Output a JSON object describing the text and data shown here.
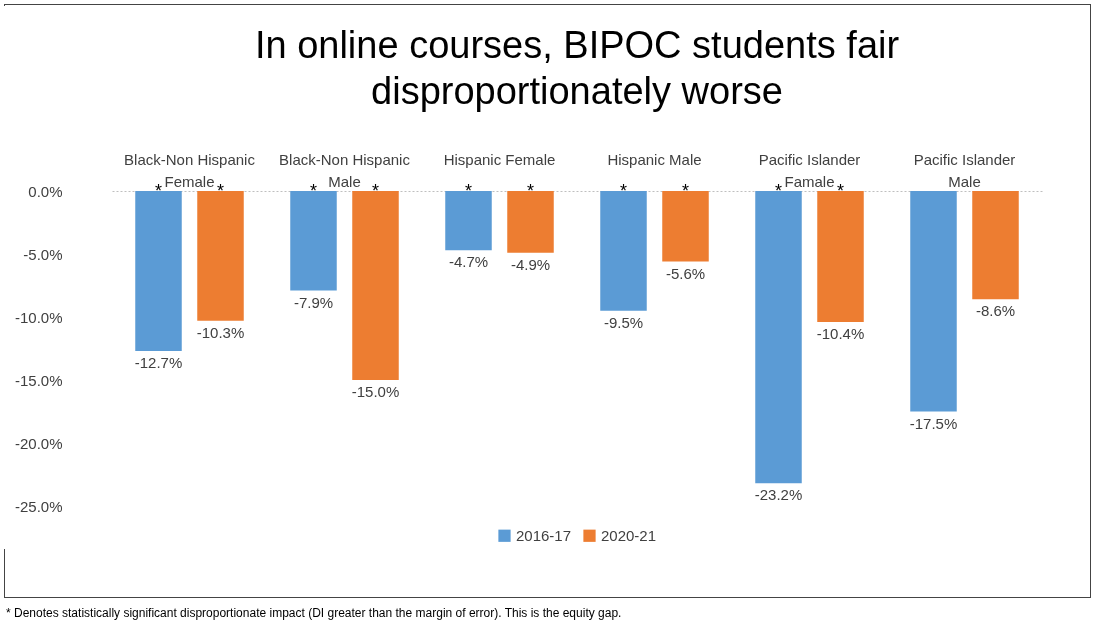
{
  "chart_data": {
    "type": "bar",
    "title": "In online courses, BIPOC students fair disproportionately worse",
    "categories": [
      "Black-Non Hispanic Female",
      "Black-Non Hispanic Male",
      "Hispanic Female",
      "Hispanic Male",
      "Pacific Islander Famale",
      "Pacific Islander Male"
    ],
    "series": [
      {
        "name": "2016-17",
        "color": "#5b9bd5",
        "values": [
          -12.7,
          -7.9,
          -4.7,
          -9.5,
          -23.2,
          -17.5
        ],
        "value_labels": [
          "-12.7%",
          "-7.9%",
          "-4.7%",
          "-9.5%",
          "-23.2%",
          "-17.5%"
        ]
      },
      {
        "name": "2020-21",
        "color": "#ed7d31",
        "values": [
          -10.3,
          -15.0,
          -4.9,
          -5.6,
          -10.4,
          -8.6
        ],
        "value_labels": [
          "-10.3%",
          "-15.0%",
          "-4.9%",
          "-5.6%",
          "-10.4%",
          "-8.6%"
        ]
      }
    ],
    "ylim": [
      -25,
      0
    ],
    "yticks": [
      {
        "value": 0,
        "label": "0.0%"
      },
      {
        "value": -5,
        "label": "-5.0%"
      },
      {
        "value": -10,
        "label": "-10.0%"
      },
      {
        "value": -15,
        "label": "-15.0%"
      },
      {
        "value": -20,
        "label": "-20.0%"
      },
      {
        "value": -25,
        "label": "-25.0%"
      }
    ],
    "grid": false,
    "legend": "bottom",
    "annotations": [
      "*",
      "*",
      "*",
      "*",
      "*",
      "*",
      "*",
      "*",
      "*",
      "*",
      "* Denotes statistically significant disproportionate impact (DI greater than the margin of error).  This is the equity gap."
    ]
  }
}
